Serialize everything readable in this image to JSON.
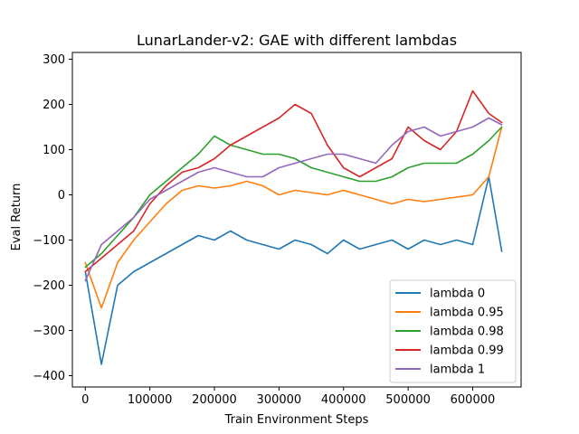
{
  "chart_data": {
    "type": "line",
    "title": "LunarLander-v2: GAE with different lambdas",
    "xlabel": "Train Environment Steps",
    "ylabel": "Eval Return",
    "xlim": [
      -20000,
      675000
    ],
    "ylim": [
      -425,
      315
    ],
    "xticks": [
      0,
      100000,
      200000,
      300000,
      400000,
      500000,
      600000
    ],
    "yticks": [
      -400,
      -300,
      -200,
      -100,
      0,
      100,
      200,
      300
    ],
    "xtick_labels": [
      "0",
      "100000",
      "200000",
      "300000",
      "400000",
      "500000",
      "600000"
    ],
    "ytick_labels": [
      "−400",
      "−300",
      "−200",
      "−100",
      "0",
      "100",
      "200",
      "300"
    ],
    "grid": false,
    "legend_position": "lower-right",
    "series": [
      {
        "name": "lambda 0",
        "color": "#1f77b4",
        "x": [
          0,
          25000,
          50000,
          75000,
          100000,
          125000,
          150000,
          175000,
          200000,
          225000,
          250000,
          275000,
          300000,
          325000,
          350000,
          375000,
          400000,
          425000,
          450000,
          475000,
          500000,
          525000,
          550000,
          575000,
          600000,
          625000,
          645000
        ],
        "y": [
          -170,
          -375,
          -200,
          -170,
          -150,
          -130,
          -110,
          -90,
          -100,
          -80,
          -100,
          -110,
          -120,
          -100,
          -110,
          -130,
          -100,
          -120,
          -110,
          -100,
          -120,
          -100,
          -110,
          -100,
          -110,
          40,
          -125
        ]
      },
      {
        "name": "lambda 0.95",
        "color": "#ff7f0e",
        "x": [
          0,
          25000,
          50000,
          75000,
          100000,
          125000,
          150000,
          175000,
          200000,
          225000,
          250000,
          275000,
          300000,
          325000,
          350000,
          375000,
          400000,
          425000,
          450000,
          475000,
          500000,
          525000,
          550000,
          575000,
          600000,
          625000,
          645000
        ],
        "y": [
          -150,
          -250,
          -150,
          -100,
          -60,
          -20,
          10,
          20,
          15,
          20,
          30,
          20,
          0,
          10,
          5,
          0,
          10,
          0,
          -10,
          -20,
          -10,
          -15,
          -10,
          -5,
          0,
          40,
          150
        ]
      },
      {
        "name": "lambda 0.98",
        "color": "#2ca02c",
        "x": [
          0,
          25000,
          50000,
          75000,
          100000,
          125000,
          150000,
          175000,
          200000,
          225000,
          250000,
          275000,
          300000,
          325000,
          350000,
          375000,
          400000,
          425000,
          450000,
          475000,
          500000,
          525000,
          550000,
          575000,
          600000,
          625000,
          645000
        ],
        "y": [
          -160,
          -130,
          -90,
          -50,
          0,
          30,
          60,
          90,
          130,
          110,
          100,
          90,
          90,
          80,
          60,
          50,
          40,
          30,
          30,
          40,
          60,
          70,
          70,
          70,
          90,
          120,
          150
        ]
      },
      {
        "name": "lambda 0.99",
        "color": "#d62728",
        "x": [
          0,
          25000,
          50000,
          75000,
          100000,
          125000,
          150000,
          175000,
          200000,
          225000,
          250000,
          275000,
          300000,
          325000,
          350000,
          375000,
          400000,
          425000,
          450000,
          475000,
          500000,
          525000,
          550000,
          575000,
          600000,
          625000,
          645000
        ],
        "y": [
          -170,
          -140,
          -110,
          -80,
          -20,
          20,
          50,
          60,
          80,
          110,
          130,
          150,
          170,
          200,
          180,
          110,
          60,
          40,
          60,
          80,
          150,
          120,
          100,
          140,
          230,
          180,
          160
        ]
      },
      {
        "name": "lambda 1",
        "color": "#9467bd",
        "x": [
          0,
          25000,
          50000,
          75000,
          100000,
          125000,
          150000,
          175000,
          200000,
          225000,
          250000,
          275000,
          300000,
          325000,
          350000,
          375000,
          400000,
          425000,
          450000,
          475000,
          500000,
          525000,
          550000,
          575000,
          600000,
          625000,
          645000
        ],
        "y": [
          -190,
          -110,
          -80,
          -50,
          -10,
          10,
          30,
          50,
          60,
          50,
          40,
          40,
          60,
          70,
          80,
          90,
          90,
          80,
          70,
          110,
          140,
          150,
          130,
          140,
          150,
          170,
          155
        ]
      }
    ]
  }
}
